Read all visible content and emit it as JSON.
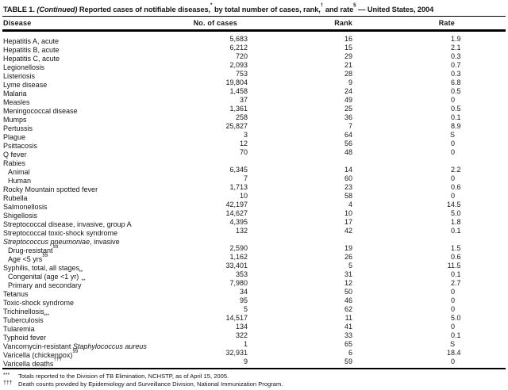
{
  "title": {
    "label": "TABLE 1. ",
    "continued": "(Continued)",
    "part1": " Reported cases of notifiable diseases,",
    "sup1": "*",
    "part2": " by total number of cases, rank,",
    "sup2": "†",
    "part3": " and rate",
    "sup3": "§",
    "part4": " — United States, 2004"
  },
  "columns": [
    "Disease",
    "No. of cases",
    "Rank",
    "Rate"
  ],
  "rows": [
    {
      "pre": "Hepatitis A, acute",
      "cases": "5,683",
      "rank": "16",
      "rate": "1.9"
    },
    {
      "pre": "Hepatitis B, acute",
      "cases": "6,212",
      "rank": "15",
      "rate": "2.1"
    },
    {
      "pre": "Hepatitis C, acute",
      "cases": "720",
      "rank": "29",
      "rate": "0.3"
    },
    {
      "pre": "Legionellosis",
      "cases": "2,093",
      "rank": "21",
      "rate": "0.7"
    },
    {
      "pre": "Listeriosis",
      "cases": "753",
      "rank": "28",
      "rate": "0.3"
    },
    {
      "pre": "Lyme disease",
      "cases": "19,804",
      "rank": "9",
      "rate": "6.8"
    },
    {
      "pre": "Malaria",
      "cases": "1,458",
      "rank": "24",
      "rate": "0.5"
    },
    {
      "pre": "Measles",
      "cases": "37",
      "rank": "49",
      "rate": "0"
    },
    {
      "pre": "Meningococcal disease",
      "cases": "1,361",
      "rank": "25",
      "rate": "0.5"
    },
    {
      "pre": "Mumps",
      "cases": "258",
      "rank": "36",
      "rate": "0.1"
    },
    {
      "pre": "Pertussis",
      "cases": "25,827",
      "rank": "7",
      "rate": "8.9"
    },
    {
      "pre": "Plague",
      "cases": "3",
      "rank": "64",
      "rate": "S"
    },
    {
      "pre": "Psittacosis",
      "cases": "12",
      "rank": "56",
      "rate": "0"
    },
    {
      "pre": "Q fever",
      "cases": "70",
      "rank": "48",
      "rate": "0"
    },
    {
      "pre": "Rabies",
      "cases": "",
      "rank": "",
      "rate": ""
    },
    {
      "pre": "Animal",
      "indent": true,
      "cases": "6,345",
      "rank": "14",
      "rate": "2.2"
    },
    {
      "pre": "Human",
      "indent": true,
      "cases": "7",
      "rank": "60",
      "rate": "0"
    },
    {
      "pre": "Rocky Mountain spotted fever",
      "cases": "1,713",
      "rank": "23",
      "rate": "0.6"
    },
    {
      "pre": "Rubella",
      "cases": "10",
      "rank": "58",
      "rate": "0"
    },
    {
      "pre": "Salmonellosis",
      "cases": "42,197",
      "rank": "4",
      "rate": "14.5"
    },
    {
      "pre": "Shigellosis",
      "cases": "14,627",
      "rank": "10",
      "rate": "5.0"
    },
    {
      "pre": "Streptococcal disease, invasive, group A",
      "cases": "4,395",
      "rank": "17",
      "rate": "1.8"
    },
    {
      "pre": "Streptococcal toxic-shock syndrome",
      "cases": "132",
      "rank": "42",
      "rate": "0.1"
    },
    {
      "pre": "",
      "italic": "Streptococcus pneumoniae",
      "post": ", invasive",
      "cases": "",
      "rank": "",
      "rate": ""
    },
    {
      "pre": "Drug-resistant",
      "sup": "§§",
      "indent": true,
      "cases": "2,590",
      "rank": "19",
      "rate": "1.5"
    },
    {
      "pre": "Age <5 yrs",
      "sup": "§§",
      "indent": true,
      "cases": "1,162",
      "rank": "26",
      "rate": "0.6"
    },
    {
      "pre": "Syphilis, total, all stages",
      "cases": "33,401",
      "rank": "5",
      "rate": "11.5"
    },
    {
      "pre": "Congenital (age <1 yr)",
      "sup": "**",
      "indent": true,
      "cases": "353",
      "rank": "31",
      "rate": "0.1"
    },
    {
      "pre": "Primary and secondary",
      "sup": "**",
      "indent": true,
      "cases": "7,980",
      "rank": "12",
      "rate": "2.7"
    },
    {
      "pre": "Tetanus",
      "cases": "34",
      "rank": "50",
      "rate": "0"
    },
    {
      "pre": "Toxic-shock syndrome",
      "cases": "95",
      "rank": "46",
      "rate": "0"
    },
    {
      "pre": "Trichinellosis",
      "cases": "5",
      "rank": "62",
      "rate": "0"
    },
    {
      "pre": "Tuberculosis",
      "sup": "***",
      "cases": "14,517",
      "rank": "11",
      "rate": "5.0"
    },
    {
      "pre": "Tularemia",
      "cases": "134",
      "rank": "41",
      "rate": "0"
    },
    {
      "pre": "Typhoid fever",
      "cases": "322",
      "rank": "33",
      "rate": "0.1"
    },
    {
      "pre": "Vancomycin-resistant ",
      "italic": "Staphylococcus aureus",
      "cases": "1",
      "rank": "65",
      "rate": "S"
    },
    {
      "pre": "Varicella (chickenpox)",
      "sup": "§§",
      "cases": "32,931",
      "rank": "6",
      "rate": "18.4"
    },
    {
      "pre": "Varicella deaths",
      "sup": "†††",
      "cases": "9",
      "rank": "59",
      "rate": "0"
    }
  ],
  "footnotes": [
    {
      "marker": "***",
      "text": "Totals reported to the Division of TB Elimination, NCHSTP, as of April 15, 2005."
    },
    {
      "marker": "†††",
      "text": "Death counts provided by Epidemiology and Surveillance Division, National Immunization Program."
    }
  ]
}
